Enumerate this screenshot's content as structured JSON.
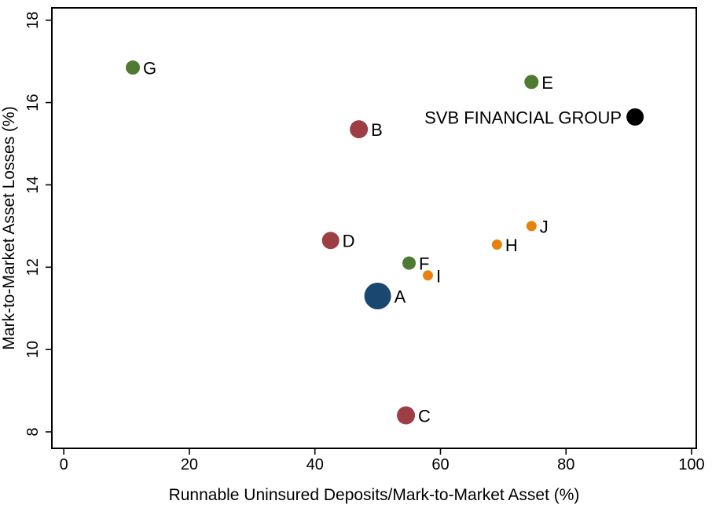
{
  "chart_data": {
    "type": "scatter",
    "title": "",
    "xlabel": "Runnable Uninsured Deposits/Mark-to-Market Asset (%)",
    "ylabel": "Mark-to-Market Asset Losses (%)",
    "xlim": [
      -1.9,
      100.75
    ],
    "ylim": [
      7.6,
      18.3
    ],
    "xticks": [
      0,
      20,
      40,
      60,
      80,
      100
    ],
    "yticks": [
      8,
      10,
      12,
      14,
      16,
      18
    ],
    "grid": false,
    "legend_position": "none",
    "colors": {
      "blue": "#1a476f",
      "maroon": "#9d3d44",
      "green": "#4e7a31",
      "orange": "#e8820d",
      "black": "#000000"
    },
    "points": [
      {
        "label": "A",
        "x": 50,
        "y": 11.3,
        "r": 17,
        "color": "#1a476f",
        "label_side": "right"
      },
      {
        "label": "B",
        "x": 47,
        "y": 15.35,
        "r": 11.5,
        "color": "#9d3d44",
        "label_side": "right"
      },
      {
        "label": "C",
        "x": 54.5,
        "y": 8.4,
        "r": 11.5,
        "color": "#9d3d44",
        "label_side": "right"
      },
      {
        "label": "D",
        "x": 42.5,
        "y": 12.65,
        "r": 11,
        "color": "#9d3d44",
        "label_side": "right"
      },
      {
        "label": "E",
        "x": 74.5,
        "y": 16.5,
        "r": 9,
        "color": "#4e7a31",
        "label_side": "right"
      },
      {
        "label": "F",
        "x": 55,
        "y": 12.1,
        "r": 8.5,
        "color": "#4e7a31",
        "label_side": "right"
      },
      {
        "label": "G",
        "x": 11,
        "y": 16.85,
        "r": 9,
        "color": "#4e7a31",
        "label_side": "right"
      },
      {
        "label": "H",
        "x": 69,
        "y": 12.55,
        "r": 6.5,
        "color": "#e8820d",
        "label_side": "right"
      },
      {
        "label": "I",
        "x": 58,
        "y": 11.8,
        "r": 6.5,
        "color": "#e8820d",
        "label_side": "right"
      },
      {
        "label": "J",
        "x": 74.5,
        "y": 13.0,
        "r": 6.5,
        "color": "#e8820d",
        "label_side": "right"
      },
      {
        "label": "SVB FINANCIAL GROUP",
        "x": 91,
        "y": 15.65,
        "r": 11,
        "color": "#000000",
        "label_side": "left"
      }
    ]
  }
}
